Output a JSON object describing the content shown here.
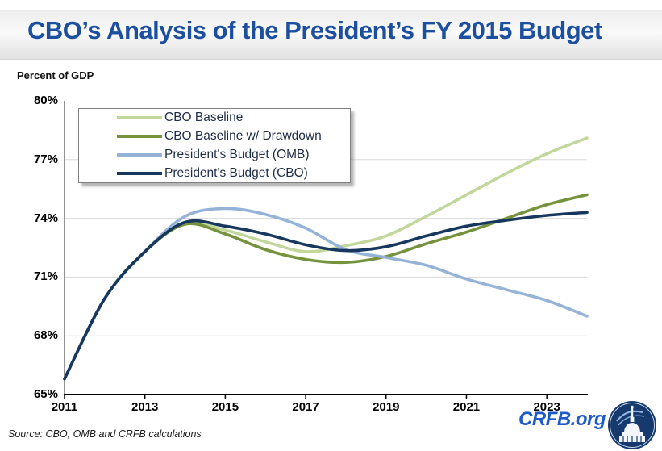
{
  "header": {
    "title": "CBO’s Analysis of the President’s FY 2015 Budget"
  },
  "footer": {
    "source": "Source: CBO, OMB and CRFB calculations",
    "site": "CRFB.org"
  },
  "icons": {
    "logo": "capitol-dome-logo-icon"
  },
  "colors": {
    "title_blue": "#1d4fa1",
    "brand_blue": "#1f5bc8",
    "logo_navy": "#16396e",
    "gridline": "#d9d9d9",
    "axis": "#000000"
  },
  "chart_data": {
    "type": "line",
    "title": "CBO’s Analysis of the President’s FY 2015 Budget",
    "ylabel": "Percent of GDP",
    "xlim": [
      2011,
      2024
    ],
    "ylim": [
      65,
      80
    ],
    "x": [
      2011,
      2012,
      2013,
      2014,
      2015,
      2016,
      2017,
      2018,
      2019,
      2020,
      2021,
      2022,
      2023,
      2024
    ],
    "y_ticks": [
      80,
      77,
      74,
      71,
      68,
      65
    ],
    "y_tick_labels": [
      "80%",
      "77%",
      "74%",
      "71%",
      "68%",
      "65%"
    ],
    "x_ticks": [
      2011,
      2013,
      2015,
      2017,
      2019,
      2021,
      2023
    ],
    "x_tick_labels": [
      "2011",
      "2013",
      "2015",
      "2017",
      "2019",
      "2021",
      "2023"
    ],
    "grid": "horizontal",
    "legend_position": "top-left",
    "series": [
      {
        "name": "CBO Baseline",
        "color": "#C3D69B",
        "values": [
          65.8,
          69.9,
          72.3,
          73.7,
          73.4,
          72.8,
          72.3,
          72.6,
          73.1,
          74.1,
          75.2,
          76.3,
          77.3,
          78.1
        ]
      },
      {
        "name": "CBO Baseline w/ Drawdown",
        "color": "#76923C",
        "values": [
          65.8,
          69.9,
          72.3,
          73.7,
          73.2,
          72.4,
          71.9,
          71.75,
          72.05,
          72.7,
          73.3,
          74.0,
          74.7,
          75.2
        ]
      },
      {
        "name": "President's Budget (OMB)",
        "color": "#95B3D7",
        "values": [
          65.8,
          69.9,
          72.3,
          74.1,
          74.5,
          74.2,
          73.5,
          72.4,
          72.0,
          71.6,
          70.9,
          70.35,
          69.8,
          69.0
        ]
      },
      {
        "name": "President's Budget (CBO)",
        "color": "#17375E",
        "values": [
          65.8,
          69.9,
          72.3,
          73.8,
          73.6,
          73.2,
          72.65,
          72.35,
          72.55,
          73.1,
          73.6,
          73.9,
          74.15,
          74.3
        ]
      }
    ]
  }
}
